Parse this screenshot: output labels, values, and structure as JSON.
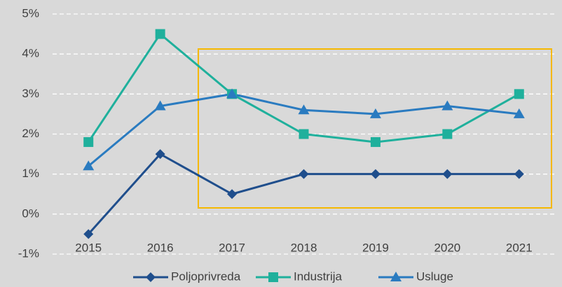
{
  "chart_data": {
    "type": "line",
    "categories": [
      "2015",
      "2016",
      "2017",
      "2018",
      "2019",
      "2020",
      "2021"
    ],
    "series": [
      {
        "name": "Poljoprivreda",
        "color": "#1f4e8c",
        "marker": "diamond",
        "values": [
          -0.5,
          1.5,
          0.5,
          1,
          1,
          1,
          1
        ]
      },
      {
        "name": "Industrija",
        "color": "#1fb09c",
        "marker": "square",
        "values": [
          1.8,
          4.5,
          3,
          2,
          1.8,
          2,
          3
        ]
      },
      {
        "name": "Usluge",
        "color": "#2a7bc0",
        "marker": "triangle",
        "values": [
          1.2,
          2.7,
          3,
          2.6,
          2.5,
          2.7,
          2.5
        ]
      }
    ],
    "ylim": [
      -1,
      5
    ],
    "yticks": [
      {
        "value": -1,
        "label": "-1%"
      },
      {
        "value": 0,
        "label": "0%"
      },
      {
        "value": 1,
        "label": "1%"
      },
      {
        "value": 2,
        "label": "2%"
      },
      {
        "value": 3,
        "label": "3%"
      },
      {
        "value": 4,
        "label": "4%"
      },
      {
        "value": 5,
        "label": "5%"
      }
    ],
    "grid": true,
    "legend": "bottom"
  }
}
